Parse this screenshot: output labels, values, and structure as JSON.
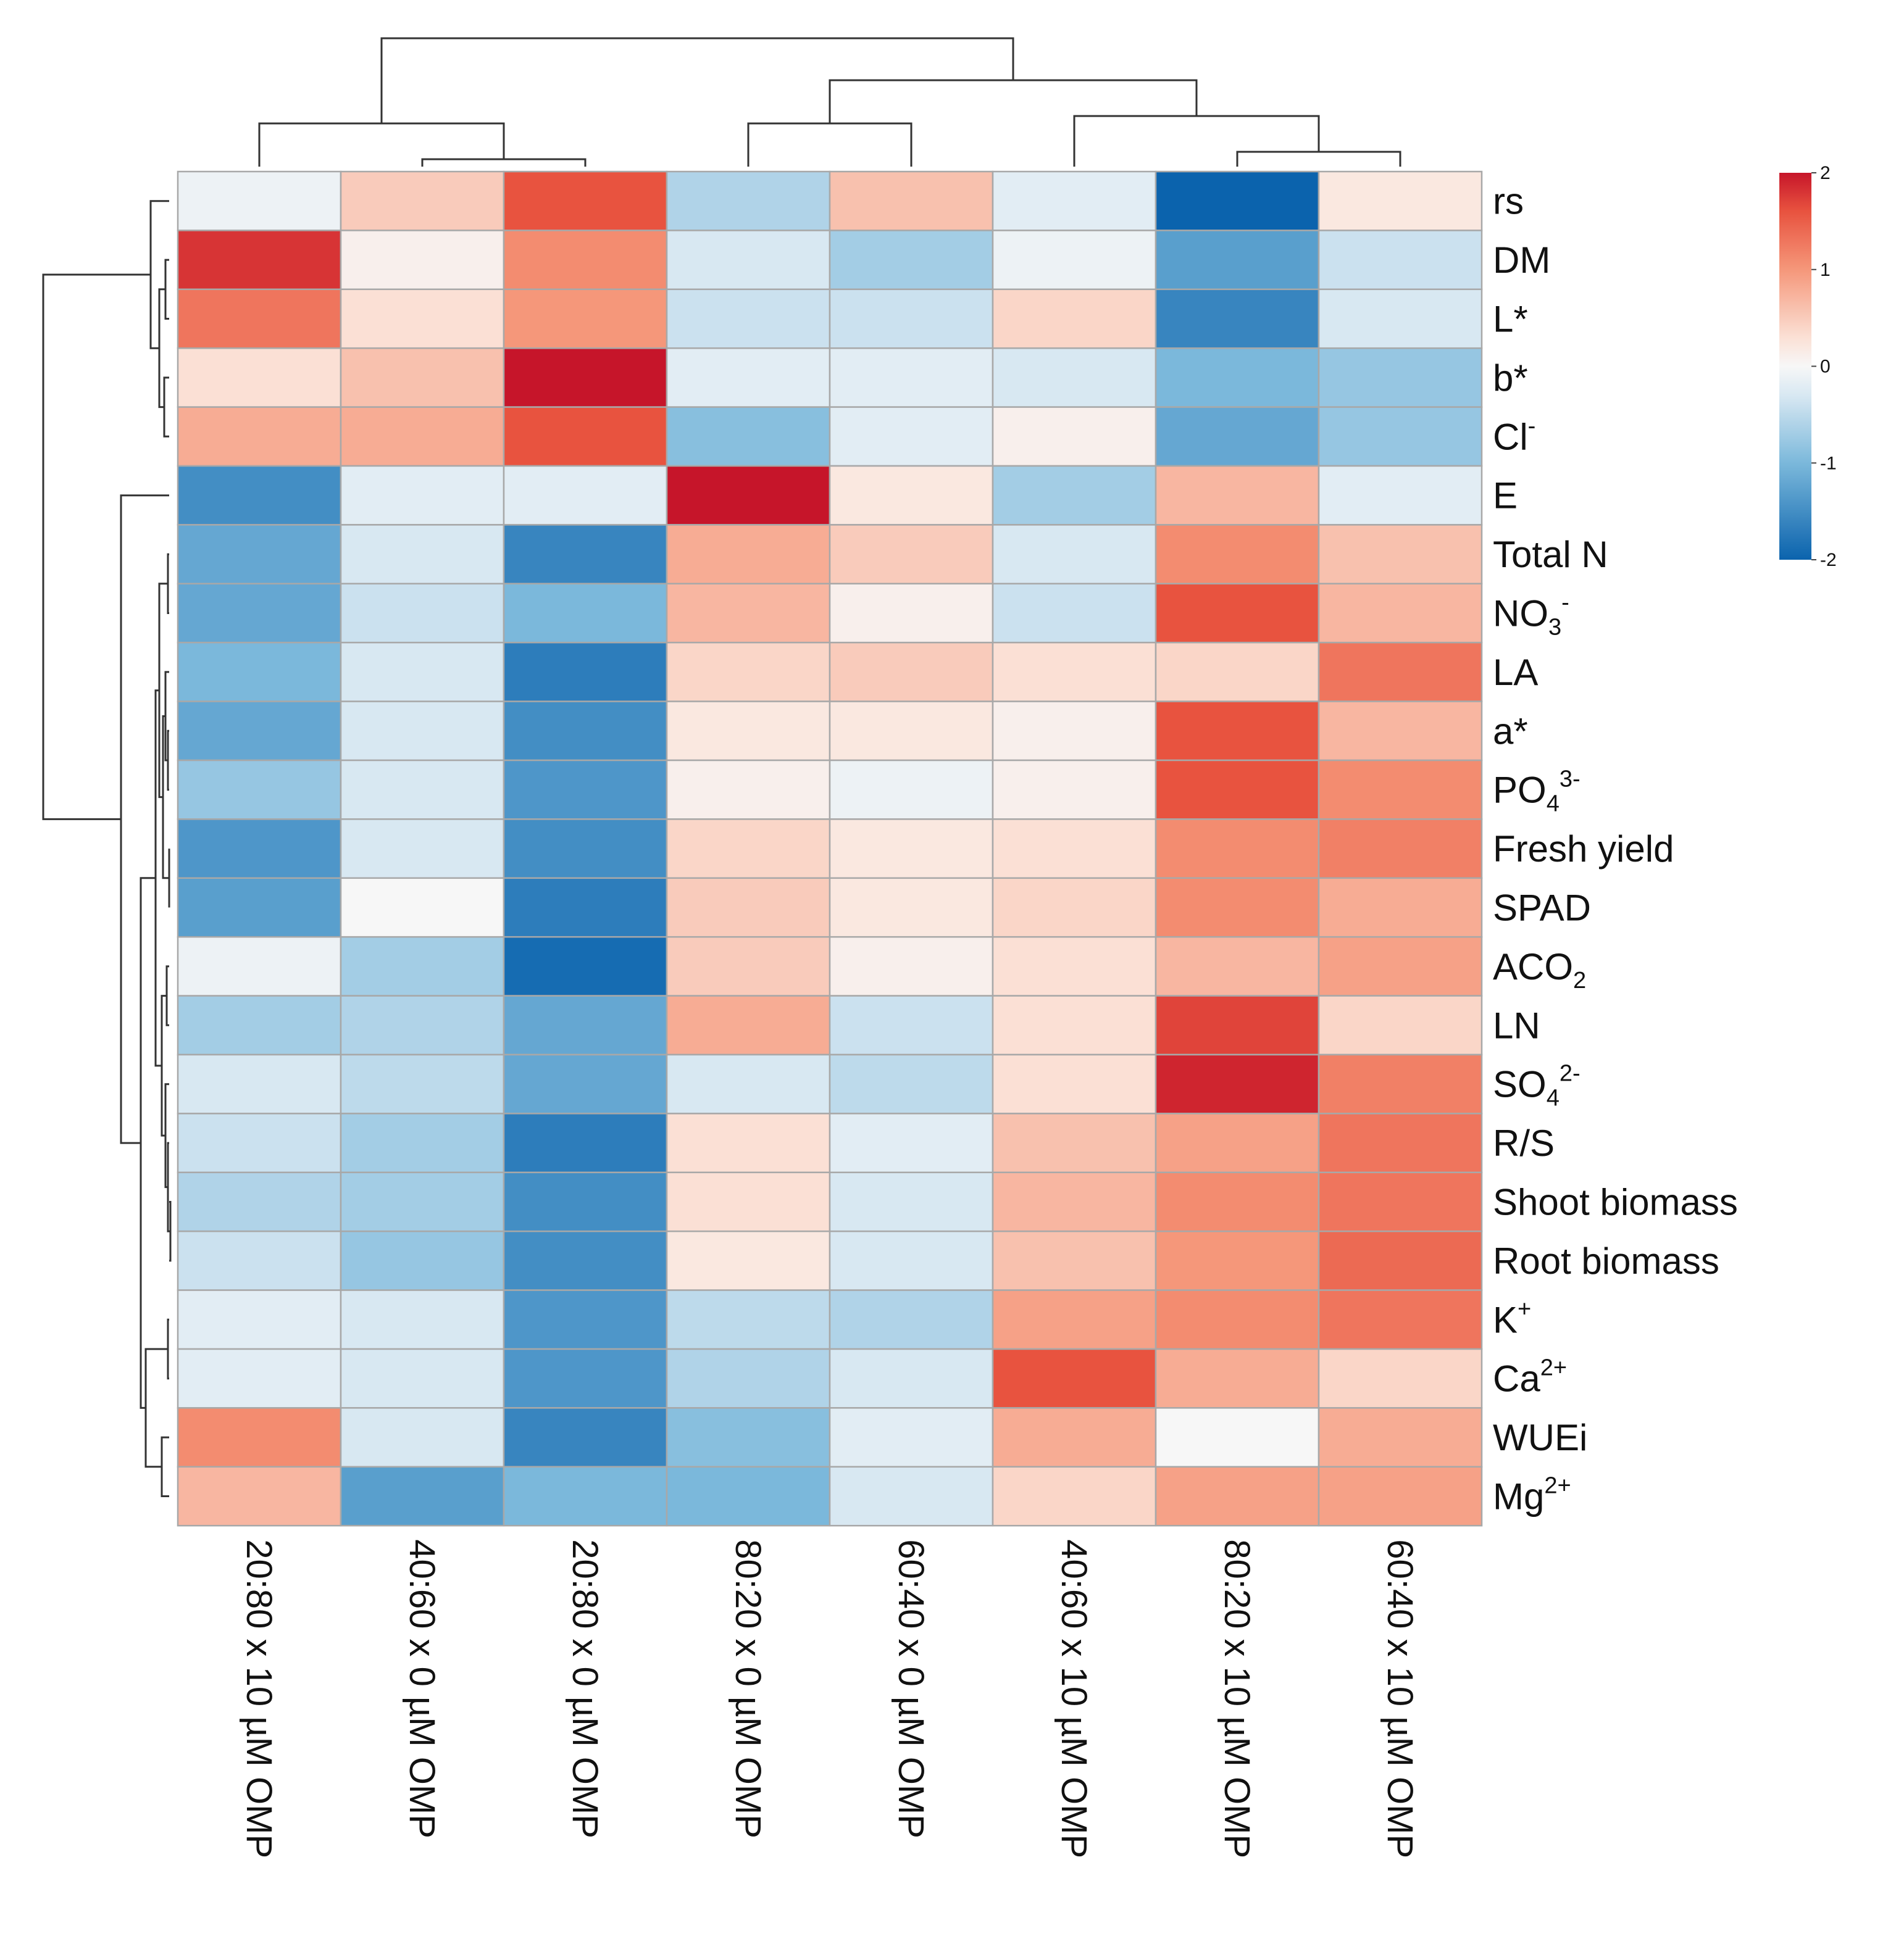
{
  "chart_data": {
    "type": "heatmap",
    "title": "",
    "xlabel": "",
    "ylabel": "",
    "columns": [
      "20:80 x 10 µM OMP",
      "40:60 x 0 µM OMP",
      "20:80 x 0 µM OMP",
      "80:20 x 0 µM OMP",
      "60:40 x 0 µM OMP",
      "40:60 x 10 µM OMP",
      "80:20 x 10 µM OMP",
      "60:40 x 10 µM OMP"
    ],
    "rows": [
      {
        "base": "rs",
        "sup": "",
        "sub": ""
      },
      {
        "base": "DM",
        "sup": "",
        "sub": ""
      },
      {
        "base": "L*",
        "sup": "",
        "sub": ""
      },
      {
        "base": "b*",
        "sup": "",
        "sub": ""
      },
      {
        "base": "Cl",
        "sup": "-",
        "sub": ""
      },
      {
        "base": "E",
        "sup": "",
        "sub": ""
      },
      {
        "base": "Total N",
        "sup": "",
        "sub": ""
      },
      {
        "base": "NO",
        "sup": "-",
        "sub": "3"
      },
      {
        "base": "LA",
        "sup": "",
        "sub": ""
      },
      {
        "base": "a*",
        "sup": "",
        "sub": ""
      },
      {
        "base": "PO",
        "sup": "3-",
        "sub": "4"
      },
      {
        "base": "Fresh yield",
        "sup": "",
        "sub": ""
      },
      {
        "base": "SPAD",
        "sup": "",
        "sub": ""
      },
      {
        "base": "ACO",
        "sup": "",
        "sub": "2"
      },
      {
        "base": "LN",
        "sup": "",
        "sub": ""
      },
      {
        "base": "SO",
        "sup": "2-",
        "sub": "4"
      },
      {
        "base": "R/S",
        "sup": "",
        "sub": ""
      },
      {
        "base": "Shoot biomass",
        "sup": "",
        "sub": ""
      },
      {
        "base": "Root biomass",
        "sup": "",
        "sub": ""
      },
      {
        "base": "K",
        "sup": "+",
        "sub": ""
      },
      {
        "base": "Ca",
        "sup": "2+",
        "sub": ""
      },
      {
        "base": "WUEi",
        "sup": "",
        "sub": ""
      },
      {
        "base": "Mg",
        "sup": "2+",
        "sub": ""
      }
    ],
    "values": [
      [
        -0.1,
        0.5,
        1.6,
        -0.6,
        0.6,
        -0.2,
        -2.0,
        0.2
      ],
      [
        1.8,
        0.1,
        1.1,
        -0.3,
        -0.7,
        -0.1,
        -1.3,
        -0.4
      ],
      [
        1.3,
        0.3,
        1.0,
        -0.4,
        -0.4,
        0.4,
        -1.6,
        -0.3
      ],
      [
        0.3,
        0.6,
        2.0,
        -0.2,
        -0.2,
        -0.3,
        -1.0,
        -0.8
      ],
      [
        0.8,
        0.8,
        1.6,
        -0.9,
        -0.2,
        0.1,
        -1.2,
        -0.8
      ],
      [
        -1.5,
        -0.2,
        -0.2,
        2.0,
        0.2,
        -0.7,
        0.7,
        -0.2
      ],
      [
        -1.2,
        -0.3,
        -1.6,
        0.8,
        0.5,
        -0.3,
        1.1,
        0.6
      ],
      [
        -1.2,
        -0.4,
        -1.0,
        0.7,
        0.1,
        -0.4,
        1.6,
        0.7
      ],
      [
        -1.0,
        -0.3,
        -1.7,
        0.4,
        0.5,
        0.3,
        0.4,
        1.3
      ],
      [
        -1.2,
        -0.3,
        -1.5,
        0.2,
        0.2,
        0.1,
        1.6,
        0.7
      ],
      [
        -0.8,
        -0.3,
        -1.4,
        0.1,
        -0.1,
        0.1,
        1.6,
        1.1
      ],
      [
        -1.4,
        -0.3,
        -1.5,
        0.4,
        0.2,
        0.3,
        1.1,
        1.2
      ],
      [
        -1.3,
        0.0,
        -1.7,
        0.5,
        0.2,
        0.4,
        1.1,
        0.8
      ],
      [
        -0.1,
        -0.7,
        -1.9,
        0.5,
        0.1,
        0.3,
        0.7,
        0.9
      ],
      [
        -0.7,
        -0.6,
        -1.2,
        0.8,
        -0.4,
        0.3,
        1.7,
        0.4
      ],
      [
        -0.3,
        -0.5,
        -1.2,
        -0.3,
        -0.5,
        0.3,
        1.9,
        1.2
      ],
      [
        -0.4,
        -0.7,
        -1.7,
        0.3,
        -0.2,
        0.6,
        0.9,
        1.3
      ],
      [
        -0.6,
        -0.7,
        -1.5,
        0.3,
        -0.3,
        0.7,
        1.1,
        1.3
      ],
      [
        -0.4,
        -0.8,
        -1.5,
        0.2,
        -0.3,
        0.6,
        1.0,
        1.4
      ],
      [
        -0.2,
        -0.3,
        -1.4,
        -0.5,
        -0.6,
        0.9,
        1.1,
        1.3
      ],
      [
        -0.2,
        -0.3,
        -1.4,
        -0.6,
        -0.3,
        1.6,
        0.8,
        0.4
      ],
      [
        1.1,
        -0.3,
        -1.6,
        -0.9,
        -0.2,
        0.8,
        0.0,
        0.8
      ],
      [
        0.7,
        -1.3,
        -1.0,
        -1.0,
        -0.3,
        0.4,
        0.9,
        0.9
      ]
    ],
    "legend": {
      "ticks": [
        2,
        1,
        0,
        -1,
        -2
      ],
      "range": [
        -2,
        2
      ],
      "colors": {
        "low": "#0b63ad",
        "mid": "#f7f7f7",
        "high": "#c6152a"
      },
      "placement": "top-right"
    },
    "column_dendrogram": true,
    "row_dendrogram": true
  }
}
